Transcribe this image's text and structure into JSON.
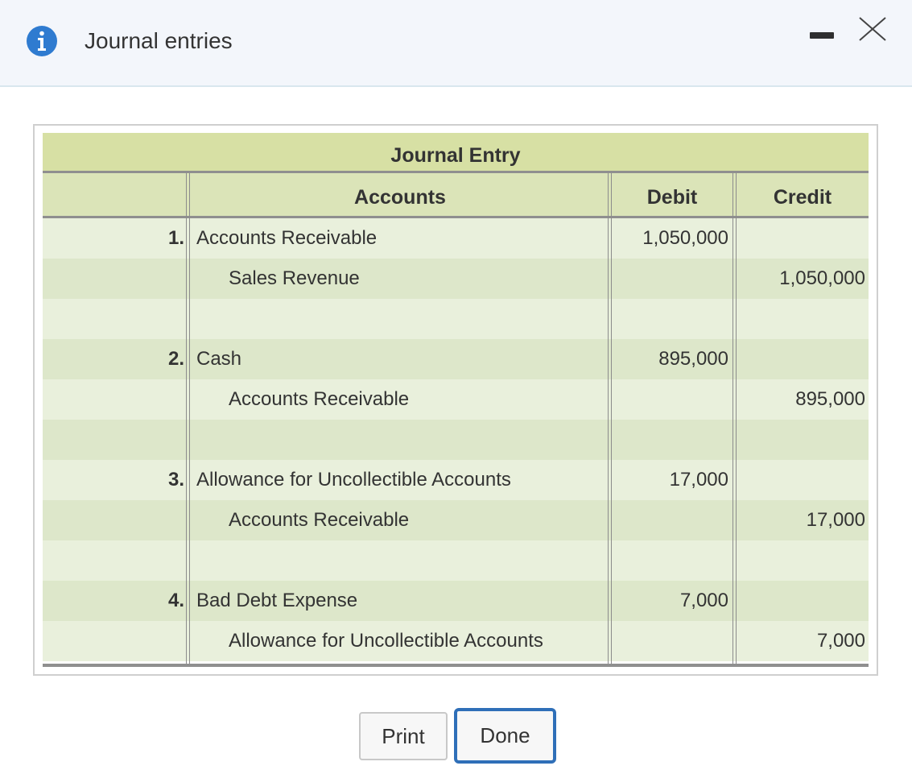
{
  "dialog": {
    "title": "Journal entries",
    "info_icon": "info-icon",
    "minimize_icon": "minimize-icon",
    "close_icon": "close-icon"
  },
  "table": {
    "title": "Journal Entry",
    "headers": {
      "accounts": "Accounts",
      "debit": "Debit",
      "credit": "Credit"
    },
    "rows": [
      {
        "num": "1.",
        "account": "Accounts Receivable",
        "debit": "1,050,000",
        "credit": ""
      },
      {
        "num": "",
        "account": "Sales Revenue",
        "debit": "",
        "credit": "1,050,000"
      },
      {
        "num": "",
        "account": "",
        "debit": "",
        "credit": ""
      },
      {
        "num": "2.",
        "account": "Cash",
        "debit": "895,000",
        "credit": ""
      },
      {
        "num": "",
        "account": "Accounts Receivable",
        "debit": "",
        "credit": "895,000"
      },
      {
        "num": "",
        "account": "",
        "debit": "",
        "credit": ""
      },
      {
        "num": "3.",
        "account": "Allowance for Uncollectible Accounts",
        "debit": "17,000",
        "credit": ""
      },
      {
        "num": "",
        "account": "Accounts Receivable",
        "debit": "",
        "credit": "17,000"
      },
      {
        "num": "",
        "account": "",
        "debit": "",
        "credit": ""
      },
      {
        "num": "4.",
        "account": "Bad Debt Expense",
        "debit": "7,000",
        "credit": ""
      },
      {
        "num": "",
        "account": "Allowance for Uncollectible Accounts",
        "debit": "",
        "credit": "7,000"
      }
    ]
  },
  "buttons": {
    "print": "Print",
    "done": "Done"
  },
  "colors": {
    "accent": "#2f6fb8",
    "header_bg": "#d7e0a4",
    "row_light": "#e9f0dc",
    "row_dark": "#dde7ca"
  }
}
